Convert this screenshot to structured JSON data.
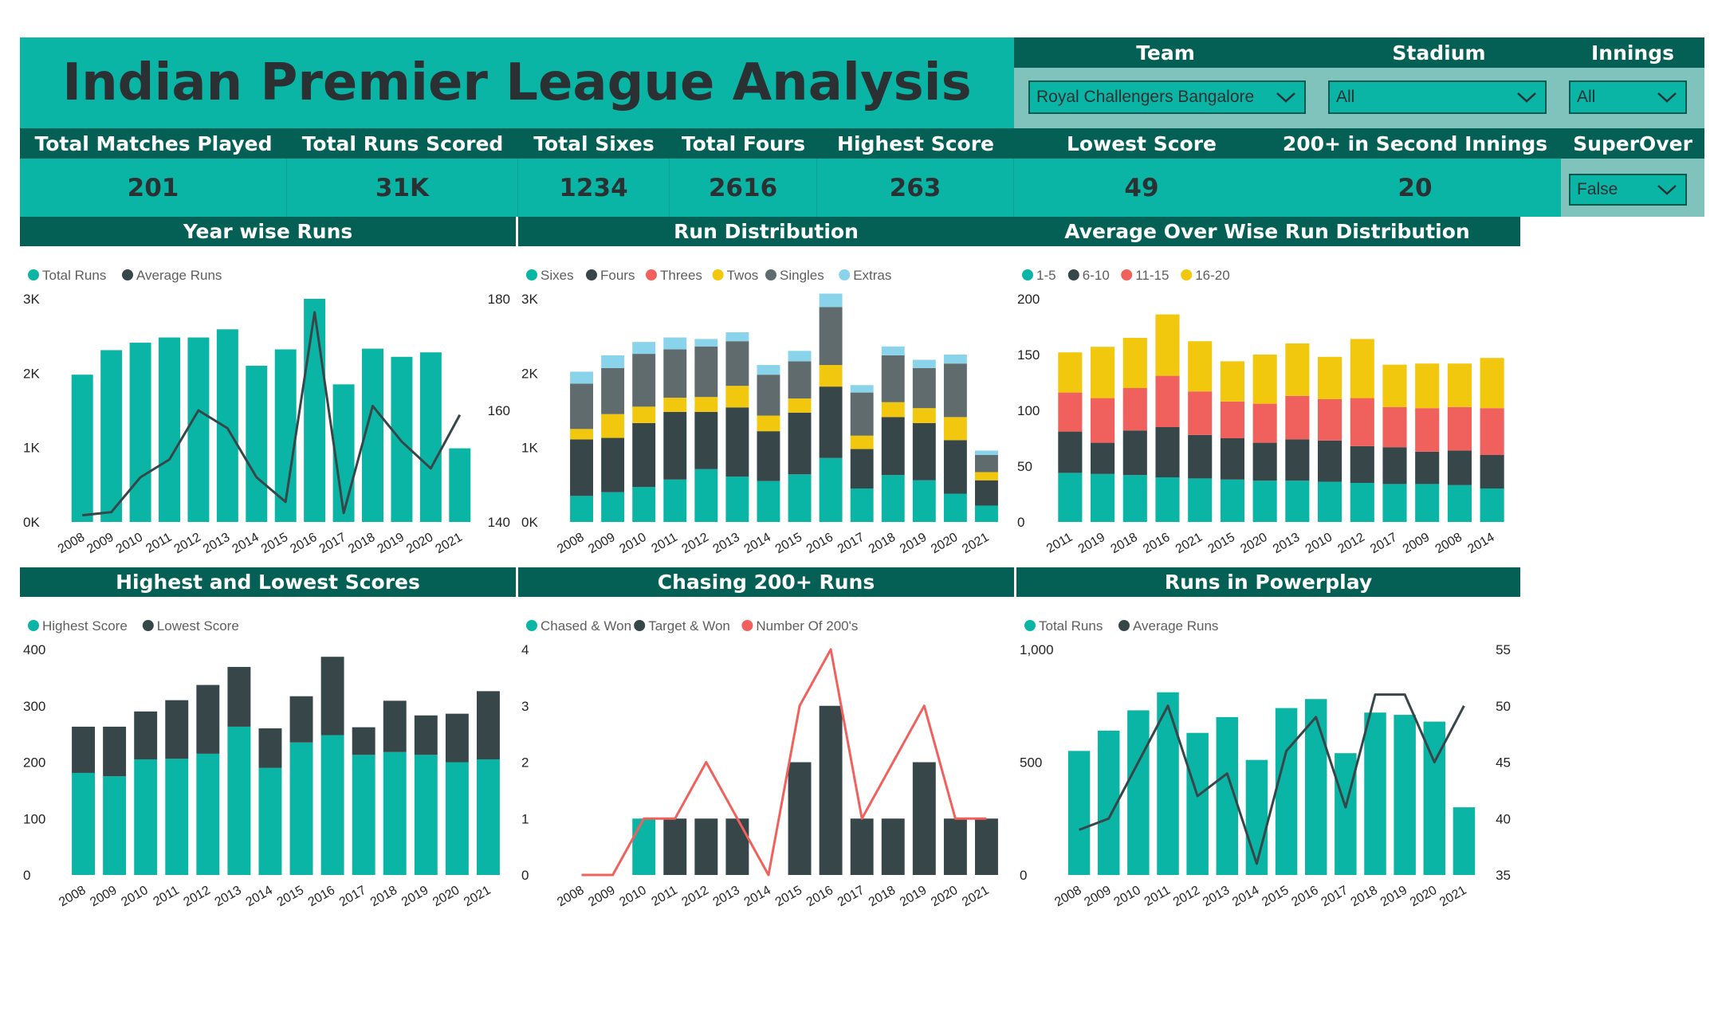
{
  "header": {
    "title": "Indian Premier League Analysis"
  },
  "filters": {
    "team": {
      "label": "Team",
      "value": "Royal Challengers Bangalore"
    },
    "stadium": {
      "label": "Stadium",
      "value": "All"
    },
    "innings": {
      "label": "Innings",
      "value": "All"
    },
    "superover": {
      "label": "SuperOver",
      "value": "False"
    }
  },
  "kpis": {
    "matches": {
      "label": "Total Matches Played",
      "value": "201"
    },
    "runs": {
      "label": "Total Runs Scored",
      "value": "31K"
    },
    "sixes": {
      "label": "Total Sixes",
      "value": "1234"
    },
    "fours": {
      "label": "Total Fours",
      "value": "2616"
    },
    "highest": {
      "label": "Highest Score",
      "value": "263"
    },
    "lowest": {
      "label": "Lowest Score",
      "value": "49"
    },
    "second": {
      "label": "200+ in Second Innings",
      "value": "20"
    }
  },
  "colors": {
    "teal": "#0ab5a6",
    "dark": "#374649",
    "red": "#f0615d",
    "yellow": "#f2c80f",
    "gray": "#5f6b6d",
    "lightblue": "#8ad4eb",
    "header": "#046054"
  },
  "chart_data": [
    {
      "id": "year_runs",
      "title": "Year wise Runs",
      "type": "bar",
      "categories": [
        "2008",
        "2009",
        "2010",
        "2011",
        "2012",
        "2013",
        "2014",
        "2015",
        "2016",
        "2017",
        "2018",
        "2019",
        "2020",
        "2021"
      ],
      "series": [
        {
          "name": "Total Runs",
          "kind": "bar",
          "axis": "left",
          "color": "#0ab5a6",
          "values": [
            1980,
            2310,
            2410,
            2480,
            2480,
            2590,
            2100,
            2320,
            3000,
            1850,
            2330,
            2220,
            2280,
            990
          ]
        },
        {
          "name": "Average Runs",
          "kind": "line",
          "axis": "right",
          "color": "#374649",
          "values": [
            141.5,
            142.2,
            150,
            154,
            165,
            161,
            150,
            144.5,
            187,
            142,
            166,
            158,
            152,
            164
          ]
        }
      ],
      "ylim_left": [
        0,
        3000
      ],
      "yticks_left": [
        "0K",
        "1K",
        "2K",
        "3K"
      ],
      "ylim_right": [
        140,
        190
      ],
      "yticks_right": [
        "140",
        "160",
        "180"
      ]
    },
    {
      "id": "run_distribution",
      "title": "Run Distribution",
      "type": "bar",
      "stacked": true,
      "categories": [
        "2008",
        "2009",
        "2010",
        "2011",
        "2012",
        "2013",
        "2014",
        "2015",
        "2016",
        "2017",
        "2018",
        "2019",
        "2020",
        "2021"
      ],
      "series": [
        {
          "name": "Sixes",
          "color": "#0ab5a6",
          "values": [
            350,
            400,
            470,
            570,
            710,
            610,
            550,
            640,
            860,
            450,
            630,
            560,
            380,
            220
          ]
        },
        {
          "name": "Fours",
          "color": "#374649",
          "values": [
            760,
            730,
            860,
            910,
            770,
            930,
            670,
            830,
            960,
            530,
            780,
            770,
            720,
            340
          ]
        },
        {
          "name": "Threes",
          "color": "#f0615d",
          "values": [
            0,
            0,
            0,
            0,
            0,
            0,
            0,
            0,
            0,
            0,
            0,
            0,
            0,
            0
          ]
        },
        {
          "name": "Twos",
          "color": "#f2c80f",
          "values": [
            140,
            320,
            220,
            190,
            200,
            290,
            210,
            190,
            290,
            180,
            200,
            200,
            310,
            110
          ]
        },
        {
          "name": "Singles",
          "color": "#5f6b6d",
          "values": [
            610,
            620,
            710,
            650,
            680,
            600,
            550,
            500,
            780,
            580,
            630,
            540,
            720,
            230
          ]
        },
        {
          "name": "Extras",
          "color": "#8ad4eb",
          "values": [
            160,
            170,
            160,
            160,
            100,
            120,
            130,
            140,
            180,
            100,
            120,
            110,
            120,
            60
          ]
        }
      ],
      "ylim": [
        0,
        3000
      ],
      "yticks": [
        "0K",
        "1K",
        "2K",
        "3K"
      ]
    },
    {
      "id": "over_distribution",
      "title": "Average Over Wise Run Distribution",
      "type": "bar",
      "stacked": true,
      "categories": [
        "2011",
        "2019",
        "2018",
        "2016",
        "2021",
        "2015",
        "2020",
        "2013",
        "2010",
        "2012",
        "2017",
        "2009",
        "2008",
        "2014"
      ],
      "series": [
        {
          "name": "1-5",
          "color": "#0ab5a6",
          "values": [
            44,
            43,
            42,
            40,
            39,
            38,
            37,
            37,
            36,
            35,
            34,
            34,
            33,
            30
          ]
        },
        {
          "name": "6-10",
          "color": "#374649",
          "values": [
            37,
            28,
            40,
            45,
            39,
            37,
            34,
            37,
            37,
            33,
            33,
            29,
            31,
            30
          ]
        },
        {
          "name": "11-15",
          "color": "#f0615d",
          "values": [
            35,
            40,
            38,
            46,
            39,
            33,
            35,
            39,
            37,
            43,
            36,
            39,
            39,
            42
          ]
        },
        {
          "name": "16-20",
          "color": "#f2c80f",
          "values": [
            36,
            46,
            45,
            55,
            45,
            36,
            44,
            47,
            38,
            53,
            38,
            40,
            39,
            45
          ]
        }
      ],
      "ylim": [
        0,
        200
      ],
      "yticks": [
        "0",
        "50",
        "100",
        "150",
        "200"
      ]
    },
    {
      "id": "high_low",
      "title": "Highest and Lowest Scores",
      "type": "bar",
      "stacked": true,
      "categories": [
        "2008",
        "2009",
        "2010",
        "2011",
        "2012",
        "2013",
        "2014",
        "2015",
        "2016",
        "2017",
        "2018",
        "2019",
        "2020",
        "2021"
      ],
      "series": [
        {
          "name": "Highest Score",
          "color": "#0ab5a6",
          "values": [
            181,
            175,
            205,
            206,
            215,
            263,
            190,
            235,
            248,
            213,
            218,
            213,
            200,
            205
          ]
        },
        {
          "name": "Lowest Score",
          "color": "#374649",
          "values": [
            82,
            88,
            85,
            104,
            122,
            106,
            70,
            82,
            139,
            49,
            91,
            70,
            86,
            121
          ]
        }
      ],
      "ylim": [
        0,
        400
      ],
      "yticks": [
        "0",
        "100",
        "200",
        "300",
        "400"
      ]
    },
    {
      "id": "chasing",
      "title": "Chasing 200+ Runs",
      "type": "bar",
      "categories": [
        "2008",
        "2009",
        "2010",
        "2011",
        "2012",
        "2013",
        "2014",
        "2015",
        "2016",
        "2017",
        "2018",
        "2019",
        "2020",
        "2021"
      ],
      "series": [
        {
          "name": "Chased & Won",
          "kind": "bar",
          "color": "#0ab5a6",
          "values": [
            0,
            0,
            1,
            0,
            0,
            0,
            0,
            0,
            0,
            0,
            0,
            0,
            0,
            0
          ]
        },
        {
          "name": "Target & Won",
          "kind": "bar",
          "color": "#374649",
          "values": [
            0,
            0,
            0,
            1,
            1,
            1,
            0,
            2,
            3,
            1,
            1,
            2,
            1,
            1
          ]
        },
        {
          "name": "Number Of 200's",
          "kind": "line",
          "color": "#f0615d",
          "values": [
            0,
            0,
            1,
            1,
            2,
            1,
            0,
            3,
            4,
            1,
            2,
            3,
            1,
            1
          ]
        }
      ],
      "ylim": [
        0,
        4
      ],
      "yticks": [
        "0",
        "1",
        "2",
        "3",
        "4"
      ]
    },
    {
      "id": "powerplay",
      "title": "Runs in Powerplay",
      "type": "bar",
      "categories": [
        "2008",
        "2009",
        "2010",
        "2011",
        "2012",
        "2013",
        "2014",
        "2015",
        "2016",
        "2017",
        "2018",
        "2019",
        "2020",
        "2021"
      ],
      "series": [
        {
          "name": "Total Runs",
          "kind": "bar",
          "axis": "left",
          "color": "#0ab5a6",
          "values": [
            550,
            640,
            730,
            810,
            630,
            700,
            510,
            740,
            780,
            540,
            720,
            710,
            680,
            300
          ]
        },
        {
          "name": "Average Runs",
          "kind": "line",
          "axis": "right",
          "color": "#374649",
          "values": [
            39,
            40,
            45,
            50,
            42,
            44,
            36,
            46,
            49,
            41,
            51,
            51,
            45,
            50
          ]
        }
      ],
      "ylim_left": [
        0,
        1000
      ],
      "yticks_left": [
        "0",
        "500",
        "1,000"
      ],
      "ylim_right": [
        35,
        55
      ],
      "yticks_right": [
        "35",
        "40",
        "45",
        "50",
        "55"
      ]
    }
  ]
}
